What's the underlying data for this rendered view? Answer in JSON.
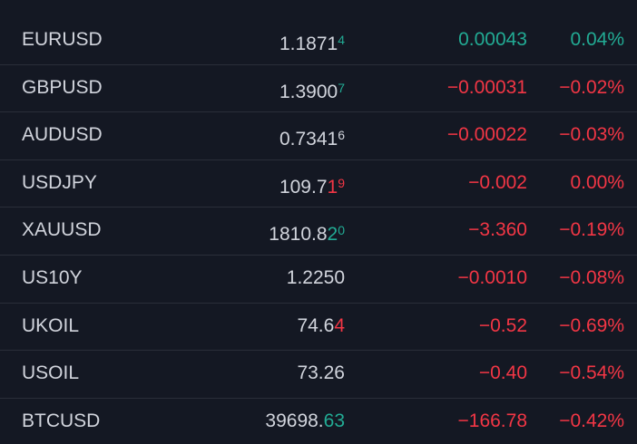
{
  "settings": {
    "background": "#141823",
    "text_color": "#d1d4dc",
    "up_color": "#22ab94",
    "down_color": "#f23645",
    "separator_color": "#2a2e39"
  },
  "watchlist": {
    "rows": [
      {
        "symbol": "EURUSD",
        "price": [
          {
            "text": "1.1871",
            "style": "plain"
          },
          {
            "text": "4",
            "style": "up-small"
          }
        ],
        "change": "0.00043",
        "change_percent": "0.04%",
        "direction": "up"
      },
      {
        "symbol": "GBPUSD",
        "price": [
          {
            "text": "1.3900",
            "style": "plain"
          },
          {
            "text": "7",
            "style": "up-small"
          }
        ],
        "change": "−0.00031",
        "change_percent": "−0.02%",
        "direction": "down"
      },
      {
        "symbol": "AUDUSD",
        "price": [
          {
            "text": "0.7341",
            "style": "plain"
          },
          {
            "text": "6",
            "style": "plain-small"
          }
        ],
        "change": "−0.00022",
        "change_percent": "−0.03%",
        "direction": "down"
      },
      {
        "symbol": "USDJPY",
        "price": [
          {
            "text": "109.7",
            "style": "plain"
          },
          {
            "text": "1",
            "style": "down"
          },
          {
            "text": "9",
            "style": "down-small"
          }
        ],
        "change": "−0.002",
        "change_percent": "0.00%",
        "direction": "down"
      },
      {
        "symbol": "XAUUSD",
        "price": [
          {
            "text": "1810.8",
            "style": "plain"
          },
          {
            "text": "2",
            "style": "up"
          },
          {
            "text": "0",
            "style": "up-small"
          }
        ],
        "change": "−3.360",
        "change_percent": "−0.19%",
        "direction": "down"
      },
      {
        "symbol": "US10Y",
        "price": [
          {
            "text": "1.2250",
            "style": "plain"
          }
        ],
        "change": "−0.0010",
        "change_percent": "−0.08%",
        "direction": "down"
      },
      {
        "symbol": "UKOIL",
        "price": [
          {
            "text": "74.6",
            "style": "plain"
          },
          {
            "text": "4",
            "style": "down"
          }
        ],
        "change": "−0.52",
        "change_percent": "−0.69%",
        "direction": "down"
      },
      {
        "symbol": "USOIL",
        "price": [
          {
            "text": "73.26",
            "style": "plain"
          }
        ],
        "change": "−0.40",
        "change_percent": "−0.54%",
        "direction": "down"
      },
      {
        "symbol": "BTCUSD",
        "price": [
          {
            "text": "39698.",
            "style": "plain"
          },
          {
            "text": "63",
            "style": "up"
          }
        ],
        "change": "−166.78",
        "change_percent": "−0.42%",
        "direction": "down"
      }
    ]
  }
}
